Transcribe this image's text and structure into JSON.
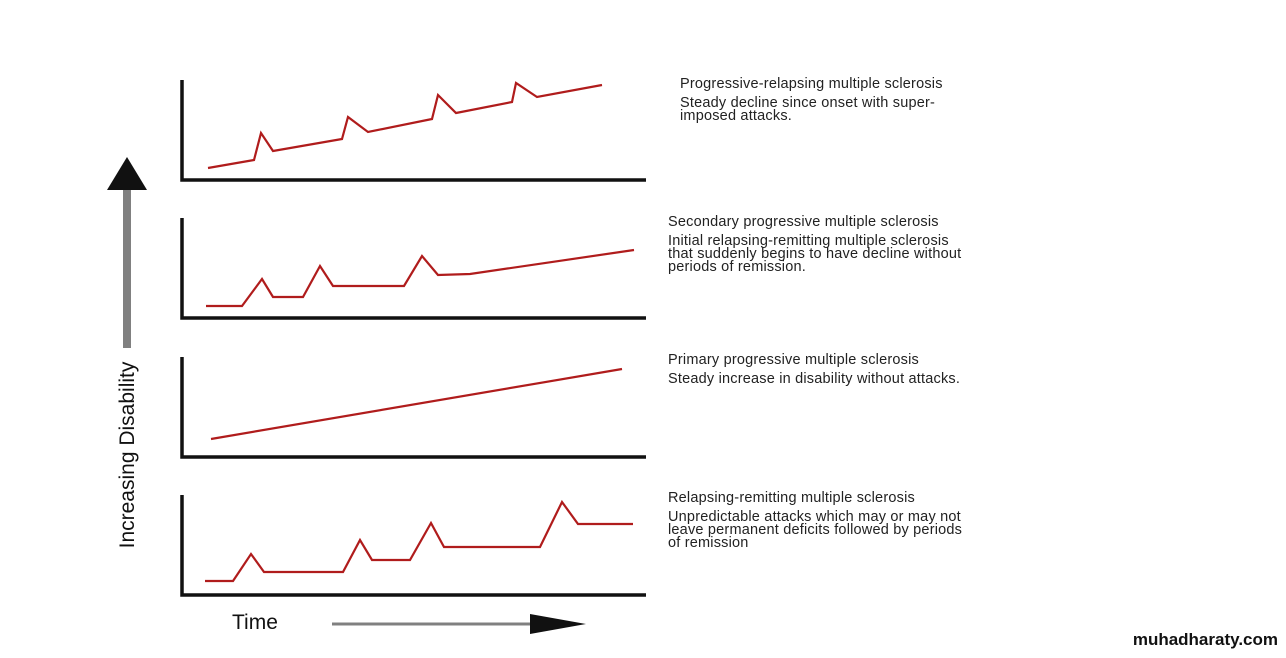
{
  "axes": {
    "y_label": "Increasing Disability",
    "x_label": "Time"
  },
  "colors": {
    "line": "#b01c1c",
    "axis": "#111111",
    "arrow": "#808080"
  },
  "panels": [
    {
      "title": "Progressive-relapsing multiple sclerosis",
      "description": "Steady decline since onset with super-\nimposed attacks."
    },
    {
      "title": "Secondary progressive multiple sclerosis",
      "description": "Initial relapsing-remitting multiple sclerosis\nthat suddenly begins to have decline without\nperiods of remission."
    },
    {
      "title": "Primary progressive multiple sclerosis",
      "description": "Steady increase in disability without attacks."
    },
    {
      "title": "Relapsing-remitting multiple sclerosis",
      "description": "Unpredictable attacks which may or may not\nleave permanent deficits followed by periods\nof remission"
    }
  ],
  "watermark": "muhadharaty.com"
}
